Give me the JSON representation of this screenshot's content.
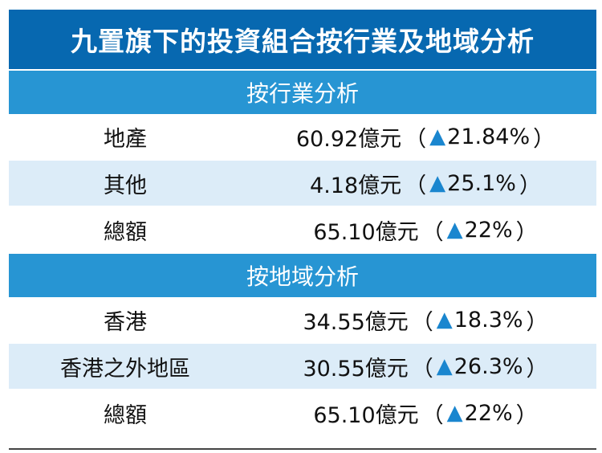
{
  "title": "九置旗下的投資組合按行業及地域分析",
  "sections": [
    {
      "heading": "按行業分析",
      "rows": [
        {
          "label": "地產",
          "amount": "60.92億元",
          "change": "21.84%"
        },
        {
          "label": "其他",
          "amount": "4.18億元",
          "change": "25.1%"
        },
        {
          "label": "總額",
          "amount": "65.10億元",
          "change": "22%"
        }
      ]
    },
    {
      "heading": "按地域分析",
      "rows": [
        {
          "label": "香港",
          "amount": "34.55億元",
          "change": "18.3%"
        },
        {
          "label": "香港之外地區",
          "amount": "30.55億元",
          "change": "26.3%"
        },
        {
          "label": "總額",
          "amount": "65.10億元",
          "change": "22%"
        }
      ]
    }
  ],
  "symbols": {
    "open": "（",
    "close": "）",
    "up": "▲"
  },
  "colors": {
    "title_bg": "#0768b0",
    "section_bg": "#2795d3",
    "alt_row_bg": "#dcecf8",
    "arrow": "#1a86cf"
  }
}
